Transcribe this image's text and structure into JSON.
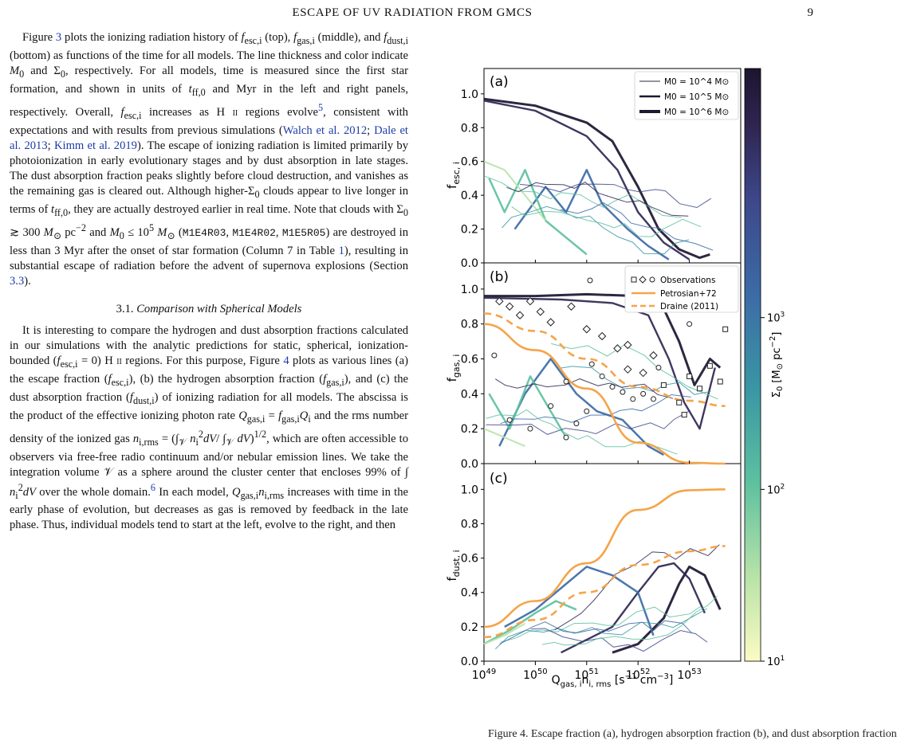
{
  "header": {
    "running_title": "ESCAPE OF UV RADIATION FROM GMCS",
    "page_number": "9"
  },
  "body": {
    "p1_intro": "Figure 3 plots the ionizing radiation history of f",
    "section": {
      "number": "3.1.",
      "title": "Comparison with Spherical Models"
    },
    "citations": [
      "Walch et al. 2012",
      "Dale et al. 2013",
      "Kimm et al. 2019"
    ],
    "model_names": [
      "M1E4R03",
      "M1E4R02",
      "M1E5R05"
    ],
    "refs": {
      "figure3": "3",
      "figure4": "4",
      "table1": "1",
      "section33": "3.3",
      "fn5": "5",
      "fn6": "6"
    }
  },
  "figure": {
    "caption_start": "Figure 4. Escape fraction (a), hydrogen absorption fraction (b), and dust absorption fraction",
    "panels": [
      "(a)",
      "(b)",
      "(c)"
    ],
    "ylabels": [
      "f_esc,i",
      "f_gas,i",
      "f_dust,i"
    ],
    "xlabel": "Q_gas,i n_i,rms [s^-1 cm^-3]",
    "xticks": [
      "10^49",
      "10^50",
      "10^51",
      "10^52",
      "10^53"
    ],
    "yticks_ab": [
      "0.0",
      "0.2",
      "0.4",
      "0.6",
      "0.8",
      "1.0"
    ],
    "legend_a": [
      "M0 = 10^4 M⊙",
      "M0 = 10^5 M⊙",
      "M0 = 10^6 M⊙"
    ],
    "legend_b": [
      "Observations",
      "Petrosian+72",
      "Draine (2011)"
    ],
    "colorbar": {
      "label": "Σ0 [M⊙ pc^-2]",
      "ticks": [
        "10^1",
        "10^2",
        "10^3"
      ],
      "colors": [
        "#fbfbc4",
        "#b9e3a8",
        "#5ec1a0",
        "#3a96a4",
        "#3c6ba6",
        "#3d4789",
        "#2f2652",
        "#1c1530"
      ]
    },
    "colors": {
      "observations": "#222222",
      "petrosian": "#f5a449",
      "draine": "#f5a449"
    }
  },
  "chart_data": [
    {
      "type": "line",
      "panel": "(a)",
      "title": "",
      "xlabel": "Q_gas,i n_i,rms [s^-1 cm^-3]",
      "ylabel": "f_esc,i",
      "xscale": "log",
      "xlim": [
        1e+49,
        1e+54
      ],
      "ylim": [
        0,
        1.15
      ],
      "legend_placement": "top-right",
      "series": [
        {
          "name": "M0 = 10^6 M⊙",
          "x": [
            1e+49,
            1e+50,
            1e+51,
            3e+51,
            1e+52,
            3e+52,
            1e+53
          ],
          "y": [
            0.97,
            0.93,
            0.82,
            0.7,
            0.42,
            0.14,
            0.02
          ]
        },
        {
          "name": "M0 = 10^5 M⊙",
          "x": [
            1e+49,
            1e+50,
            1e+51,
            3e+51,
            1e+52,
            3e+52,
            1e+53
          ],
          "y": [
            0.96,
            0.9,
            0.74,
            0.58,
            0.3,
            0.1,
            0.01
          ]
        }
      ]
    },
    {
      "type": "line",
      "panel": "(b)",
      "title": "",
      "ylabel": "f_gas,i",
      "xscale": "log",
      "xlim": [
        1e+49,
        1e+54
      ],
      "ylim": [
        0,
        1.15
      ],
      "legend_placement": "top-right",
      "series": [
        {
          "name": "Petrosian+72",
          "x": [
            1e+49,
            1e+50,
            1e+51,
            1e+52,
            1e+53,
            5e+53
          ],
          "y": [
            0.8,
            0.65,
            0.43,
            0.12,
            0.005,
            0.0
          ]
        },
        {
          "name": "Draine (2011)",
          "x": [
            1e+49,
            1e+50,
            1e+51,
            1e+52,
            1e+53,
            5e+53
          ],
          "y": [
            0.86,
            0.76,
            0.6,
            0.44,
            0.36,
            0.33
          ]
        }
      ]
    },
    {
      "type": "line",
      "panel": "(c)",
      "title": "",
      "ylabel": "f_dust,i",
      "xscale": "log",
      "xlim": [
        1e+49,
        1e+54
      ],
      "ylim": [
        0,
        1.15
      ],
      "series": [
        {
          "name": "Petrosian+72",
          "x": [
            1e+49,
            1e+50,
            1e+51,
            1e+52,
            1e+53,
            5e+53
          ],
          "y": [
            0.2,
            0.35,
            0.57,
            0.88,
            0.995,
            1.0
          ]
        },
        {
          "name": "Draine (2011)",
          "x": [
            1e+49,
            1e+50,
            1e+51,
            1e+52,
            1e+53,
            5e+53
          ],
          "y": [
            0.14,
            0.24,
            0.4,
            0.56,
            0.64,
            0.67
          ]
        }
      ]
    }
  ]
}
